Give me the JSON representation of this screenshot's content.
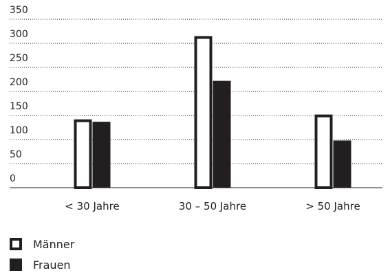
{
  "chart_data": {
    "type": "bar",
    "categories": [
      "< 30 Jahre",
      "30 – 50 Jahre",
      "> 50 Jahre"
    ],
    "series": [
      {
        "name": "Männer",
        "values": [
          142,
          315,
          152
        ]
      },
      {
        "name": "Frauen",
        "values": [
          137,
          222,
          98
        ]
      }
    ],
    "y_ticks": [
      "0",
      "50",
      "100",
      "150",
      "200",
      "250",
      "300",
      "350"
    ],
    "ylim": [
      0,
      350
    ],
    "grid": "dotted horizontal",
    "legend_position": "bottom-left",
    "title": "",
    "xlabel": "",
    "ylabel": ""
  },
  "colors": {
    "bar": "#231f20",
    "outline_fill": "#ffffff",
    "grid": "#231f20"
  }
}
